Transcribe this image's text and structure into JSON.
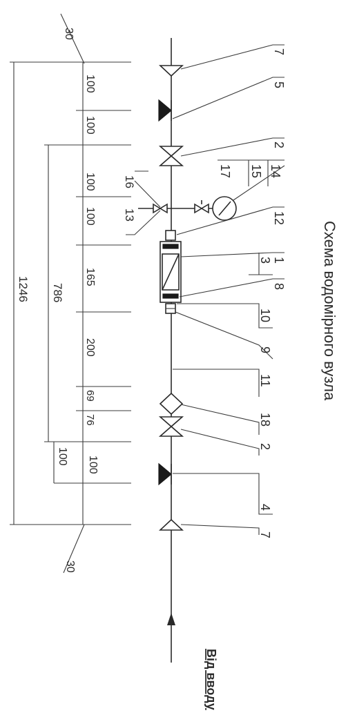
{
  "title": "Схема водомірного вузла",
  "inlet_label": "Від вводу",
  "dimensions": {
    "overall": "1246",
    "middle": "786",
    "end_top": "30",
    "end_bottom": "30",
    "segments": [
      "100",
      "100",
      "100",
      "100",
      "165",
      "200",
      "69",
      "76",
      "100"
    ],
    "side_bottom": "100"
  },
  "callouts": {
    "top_valve": "7",
    "check_valve": "5",
    "gate_valve_top": "2",
    "gauge_group": [
      "17",
      "15",
      "14"
    ],
    "tap_left": "16",
    "tap_right": "13",
    "meter_group": [
      "12",
      "1",
      "3",
      "8",
      "10",
      "9"
    ],
    "pipe": "11",
    "filter": "18",
    "gate_valve_bottom": "2",
    "check_valve_bottom": "4",
    "bottom_valve": "7"
  }
}
